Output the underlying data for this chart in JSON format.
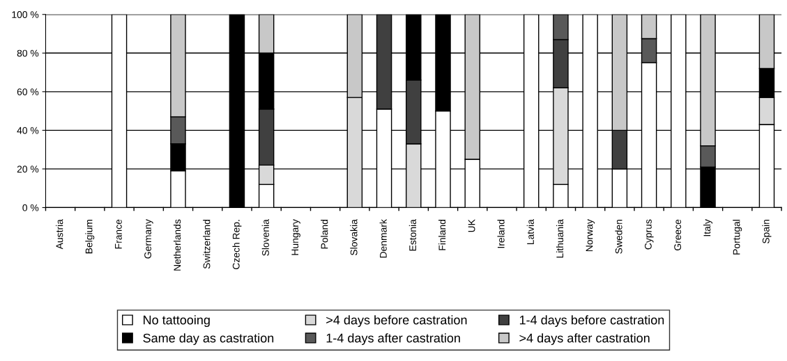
{
  "chart_data": {
    "type": "bar",
    "stacked": true,
    "categories": [
      "Austria",
      "Belgium",
      "France",
      "Germany",
      "Netherlands",
      "Switzerland",
      "Czech Rep.",
      "Slovenia",
      "Hungary",
      "Poland",
      "Slovakia",
      "Denmark",
      "Estonia",
      "Finland",
      "UK",
      "Ireland",
      "Latvia",
      "Lithuania",
      "Norway",
      "Sweden",
      "Cyprus",
      "Greece",
      "Italy",
      "Portugal",
      "Spain"
    ],
    "series": [
      {
        "name": "No tattooing",
        "color": "#ffffff",
        "values": [
          null,
          null,
          100,
          null,
          19,
          null,
          null,
          12,
          null,
          null,
          null,
          51,
          null,
          50,
          25,
          null,
          100,
          12,
          100,
          20,
          75,
          100,
          null,
          null,
          43
        ]
      },
      {
        "name": ">4 days before castration",
        "color": "#d9d9d9",
        "values": [
          null,
          null,
          null,
          null,
          null,
          null,
          null,
          10,
          null,
          null,
          57,
          null,
          33,
          null,
          null,
          null,
          null,
          50,
          null,
          null,
          null,
          null,
          null,
          null,
          14
        ]
      },
      {
        "name": "1-4 days before castration",
        "color": "#404040",
        "values": [
          null,
          null,
          null,
          null,
          null,
          null,
          null,
          29,
          null,
          null,
          null,
          49,
          33,
          null,
          null,
          null,
          null,
          25,
          null,
          20,
          null,
          null,
          null,
          null,
          null
        ]
      },
      {
        "name": "Same day as castration",
        "color": "#000000",
        "values": [
          null,
          null,
          null,
          null,
          14,
          null,
          100,
          29,
          null,
          null,
          null,
          null,
          34,
          50,
          null,
          null,
          null,
          null,
          null,
          null,
          null,
          null,
          21,
          null,
          15
        ]
      },
      {
        "name": "1-4 days after castration",
        "color": "#595959",
        "values": [
          null,
          null,
          null,
          null,
          14,
          null,
          null,
          null,
          null,
          null,
          null,
          null,
          null,
          null,
          null,
          null,
          null,
          13,
          null,
          null,
          12.5,
          null,
          11,
          null,
          null
        ]
      },
      {
        "name": ">4 days after castration",
        "color": "#c8c8c8",
        "values": [
          null,
          null,
          null,
          null,
          53,
          null,
          null,
          20,
          null,
          null,
          43,
          null,
          null,
          null,
          75,
          null,
          null,
          null,
          null,
          60,
          12.5,
          null,
          68,
          null,
          28
        ]
      }
    ],
    "ylim": [
      0,
      100
    ],
    "yticks": [
      {
        "value": 0,
        "label": "0 %"
      },
      {
        "value": 20,
        "label": "20 %"
      },
      {
        "value": 40,
        "label": "40 %"
      },
      {
        "value": 60,
        "label": "60 %"
      },
      {
        "value": 80,
        "label": "80 %"
      },
      {
        "value": 100,
        "label": "100 %"
      }
    ],
    "grid": "y",
    "legend": "bottom"
  }
}
